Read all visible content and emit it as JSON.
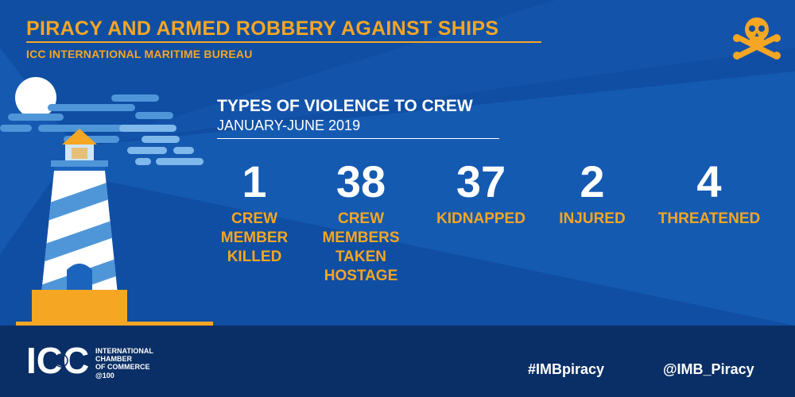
{
  "header": {
    "title": "PIRACY AND ARMED ROBBERY AGAINST SHIPS",
    "subtitle": "ICC INTERNATIONAL MARITIME BUREAU"
  },
  "section": {
    "title": "TYPES OF VIOLENCE TO CREW",
    "period": "JANUARY-JUNE 2019"
  },
  "stats": [
    {
      "value": "1",
      "label_lines": [
        "CREW",
        "MEMBER",
        "KILLED"
      ]
    },
    {
      "value": "38",
      "label_lines": [
        "CREW",
        "MEMBERS",
        "TAKEN",
        "HOSTAGE"
      ]
    },
    {
      "value": "37",
      "label_lines": [
        "KIDNAPPED"
      ]
    },
    {
      "value": "2",
      "label_lines": [
        "INJURED"
      ]
    },
    {
      "value": "4",
      "label_lines": [
        "THREATENED"
      ]
    }
  ],
  "footer": {
    "logo_text": "ICC",
    "org_lines": [
      "INTERNATIONAL",
      "CHAMBER",
      "OF COMMERCE"
    ],
    "anniversary": "@100",
    "hashtag": "#IMBpiracy",
    "handle": "@IMB_Piracy"
  },
  "colors": {
    "background": "#0f4ea3",
    "beam": "#1b64bd",
    "accent": "#f5a623",
    "footer": "#0a2f66",
    "text": "#ffffff"
  },
  "icons": [
    "skull-crossbones-icon",
    "moon-icon",
    "cloud-icon",
    "lighthouse-icon",
    "globe-icon"
  ]
}
